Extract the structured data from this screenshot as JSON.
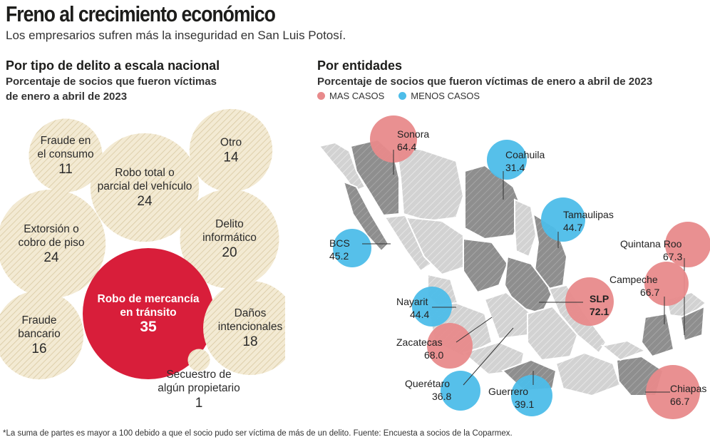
{
  "header": {
    "title": "Freno al crecimiento económico",
    "subtitle": "Los empresarios sufren más la inseguridad en San Luis Potosí."
  },
  "left": {
    "title": "Por tipo de delito a escala nacional",
    "subtitle": "Porcentaje de socios que fueron víctimas de enero a abril de 2023"
  },
  "right": {
    "title": "Por entidades",
    "subtitle": "Porcentaje de socios que fueron víctimas de enero a abril de 2023",
    "legend_more": "MAS CASOS",
    "legend_less": "MENOS CASOS"
  },
  "colors": {
    "bubble_fill": "#f3ead3",
    "bubble_highlight": "#d81e3a",
    "more_cases": "#e88a8b",
    "less_cases": "#4dbde9",
    "map_light": "#cfcfcf",
    "map_dark": "#8f8f8f"
  },
  "footnote": "*La suma de partes es mayor a 100 debido a que el socio pudo ser víctima de más de un delito. Fuente: Encuesta a socios de la Coparmex.",
  "chart_data": [
    {
      "type": "bubble",
      "title": "Por tipo de delito a escala nacional",
      "unit": "%",
      "categories": [
        "Fraude en el consumo",
        "Otro",
        "Robo total o parcial del vehículo",
        "Extorsión o cobro de piso",
        "Delito informático",
        "Robo de mercancía en tránsito",
        "Fraude bancario",
        "Daños intencionales",
        "Secuestro de algún propietario"
      ],
      "values": [
        11,
        14,
        24,
        24,
        20,
        35,
        16,
        18,
        1
      ],
      "label_lines": [
        [
          "Fraude en",
          "el consumo"
        ],
        [
          "Otro"
        ],
        [
          "Robo total o",
          "parcial del vehículo"
        ],
        [
          "Extorsión o",
          "cobro de piso"
        ],
        [
          "Delito",
          "informático"
        ],
        [
          "Robo de mercancía",
          "en tránsito"
        ],
        [
          "Fraude",
          "bancario"
        ],
        [
          "Daños",
          "intencionales"
        ],
        [
          "Secuestro de",
          "algún propietario"
        ]
      ],
      "highlight": "Robo de mercancía en tránsito"
    },
    {
      "type": "map",
      "title": "Por entidades",
      "unit": "%",
      "states": [
        {
          "name": "Sonora",
          "value": 64.4,
          "group": "more"
        },
        {
          "name": "Coahuila",
          "value": 31.4,
          "group": "less"
        },
        {
          "name": "Tamaulipas",
          "value": 44.7,
          "group": "less"
        },
        {
          "name": "BCS",
          "value": 45.2,
          "group": "less"
        },
        {
          "name": "Quintana Roo",
          "value": 67.3,
          "group": "more"
        },
        {
          "name": "Campeche",
          "value": 66.7,
          "group": "more"
        },
        {
          "name": "SLP",
          "value": 72.1,
          "group": "more"
        },
        {
          "name": "Nayarit",
          "value": 44.4,
          "group": "less"
        },
        {
          "name": "Zacatecas",
          "value": 68.0,
          "group": "more"
        },
        {
          "name": "Querétaro",
          "value": 36.8,
          "group": "less"
        },
        {
          "name": "Guerrero",
          "value": 39.1,
          "group": "less"
        },
        {
          "name": "Chiapas",
          "value": 66.7,
          "group": "more"
        }
      ]
    }
  ]
}
